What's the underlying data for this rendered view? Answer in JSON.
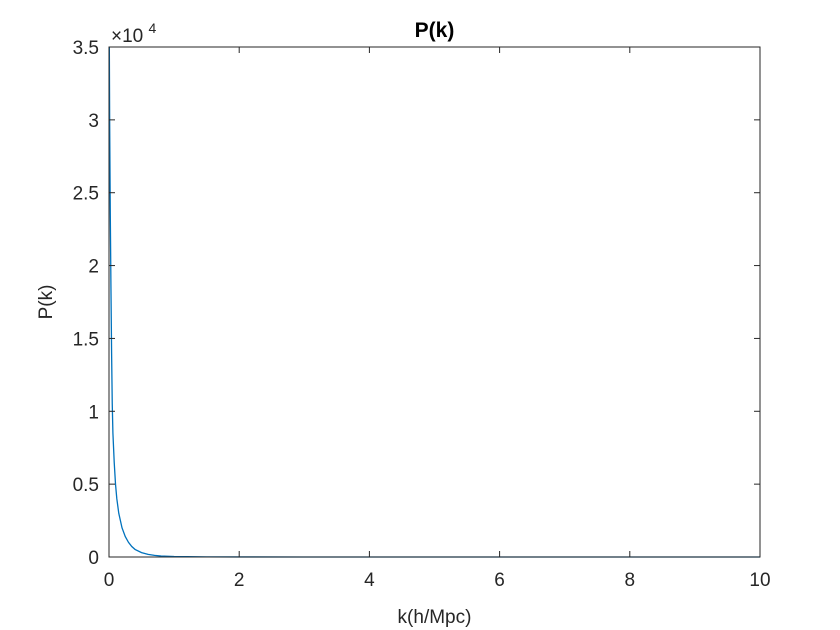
{
  "chart_data": {
    "type": "line",
    "title": "P(k)",
    "xlabel": "k(h/Mpc)",
    "ylabel": "P(k)",
    "xlim": [
      0,
      10
    ],
    "ylim": [
      0,
      35000
    ],
    "x_ticks": [
      "0",
      "2",
      "4",
      "6",
      "8",
      "10"
    ],
    "x_tick_values": [
      0,
      2,
      4,
      6,
      8,
      10
    ],
    "y_ticks": [
      "0",
      "0.5",
      "1",
      "1.5",
      "2",
      "2.5",
      "3",
      "3.5"
    ],
    "y_tick_values": [
      0,
      5000,
      10000,
      15000,
      20000,
      25000,
      30000,
      35000
    ],
    "y_exponent": {
      "base": "×10",
      "power": "4"
    },
    "grid": false,
    "line_color": "#0072bd",
    "series": [
      {
        "x": [
          0.005,
          0.01,
          0.02,
          0.03,
          0.04,
          0.05,
          0.06,
          0.08,
          0.1,
          0.12,
          0.15,
          0.2,
          0.25,
          0.3,
          0.35,
          0.4,
          0.5,
          0.6,
          0.7,
          0.8,
          1.0,
          1.2,
          1.5,
          2.0,
          3.0,
          4.0,
          5.0,
          6.0,
          7.0,
          8.0,
          9.0,
          10.0
        ],
        "y": [
          35000,
          30000,
          23500,
          18500,
          14000,
          10500,
          8500,
          6500,
          5000,
          4000,
          3000,
          2000,
          1400,
          1000,
          720,
          520,
          300,
          180,
          110,
          70,
          35,
          20,
          10,
          4,
          1,
          0.5,
          0.2,
          0.1,
          0.05,
          0.03,
          0.02,
          0.01
        ]
      }
    ]
  }
}
